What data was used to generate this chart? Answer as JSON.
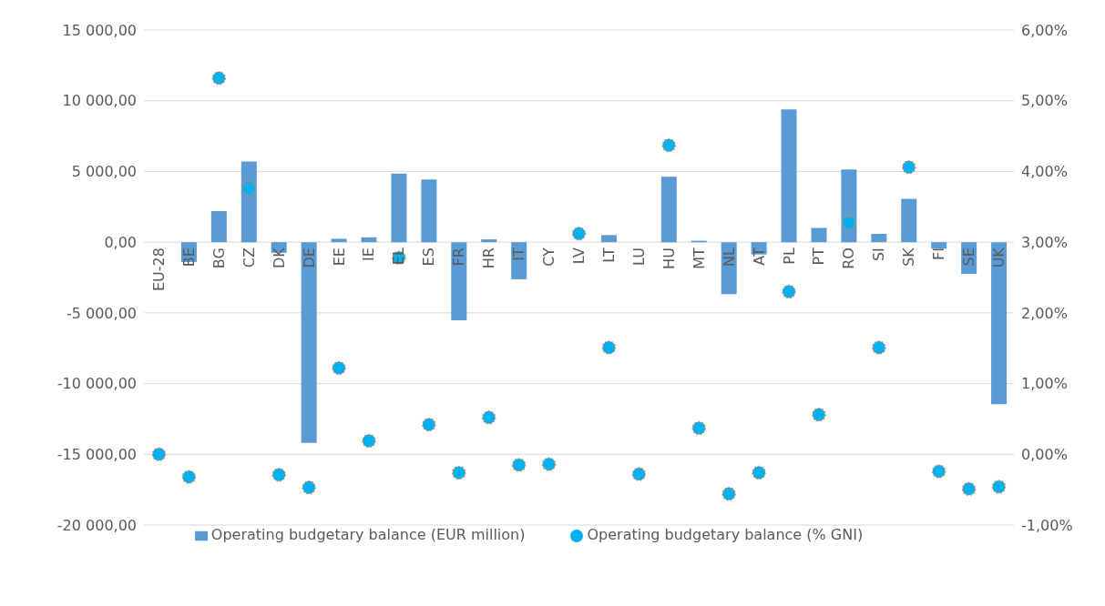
{
  "chart_data": {
    "type": "bar",
    "categories": [
      "EU-28",
      "BE",
      "BG",
      "CZ",
      "DK",
      "DE",
      "EE",
      "IE",
      "EL",
      "ES",
      "FR",
      "HR",
      "IT",
      "CY",
      "LV",
      "LT",
      "LU",
      "HU",
      "MT",
      "NL",
      "AT",
      "PL",
      "PT",
      "RO",
      "SI",
      "SK",
      "FI",
      "SE",
      "UK"
    ],
    "series": [
      {
        "name": "Operating budgetary balance (EUR million)",
        "color": "#5b9bd5",
        "values": [
          0,
          -1400,
          2200,
          5700,
          -750,
          -14200,
          240,
          340,
          4850,
          4440,
          -5530,
          200,
          -2620,
          0,
          null,
          500,
          0,
          4630,
          100,
          -3680,
          -870,
          9380,
          1010,
          5140,
          590,
          3060,
          -460,
          -2240,
          -11460
        ]
      },
      {
        "name": "Operating budgetary balance (% GNI)",
        "type": "scatter",
        "axis": "y2",
        "color": "#00b0f0",
        "marker": "circle",
        "x": [
          "EU-28",
          "BE",
          "BG",
          "CZ",
          "DK",
          "DE",
          "EE",
          "IE",
          "EL",
          "ES",
          "FR",
          "HR",
          "IT",
          "CY",
          "LV",
          "LT",
          "LU",
          "HU",
          "MT",
          "NL",
          "AT",
          "PL",
          "PT",
          "RO",
          "SI",
          "SK",
          "FI",
          "SE",
          "UK"
        ],
        "values": [
          0,
          -0.32,
          5.32,
          3.76,
          -0.29,
          -0.47,
          1.22,
          0.19,
          2.78,
          0.42,
          -0.26,
          0.52,
          -0.15,
          -0.14,
          3.12,
          1.51,
          -0.28,
          4.37,
          0.37,
          -0.56,
          -0.26,
          2.3,
          0.56,
          3.27,
          1.51,
          4.06,
          -0.24,
          -0.49,
          -0.46
        ]
      }
    ],
    "ylim": [
      -20000,
      15000
    ],
    "yticks": [
      {
        "value": -20000,
        "label": "-20 000,00"
      },
      {
        "value": -15000,
        "label": "-15 000,00"
      },
      {
        "value": -10000,
        "label": "-10 000,00"
      },
      {
        "value": -5000,
        "label": "-5 000,00"
      },
      {
        "value": 0,
        "label": "0,00"
      },
      {
        "value": 5000,
        "label": "5 000,00"
      },
      {
        "value": 10000,
        "label": "10 000,00"
      },
      {
        "value": 15000,
        "label": "15 000,00"
      }
    ],
    "y2lim": [
      -1,
      6
    ],
    "y2ticks": [
      {
        "value": -1,
        "label": "-1,00%"
      },
      {
        "value": 0,
        "label": "0,00%"
      },
      {
        "value": 1,
        "label": "1,00%"
      },
      {
        "value": 2,
        "label": "2,00%"
      },
      {
        "value": 3,
        "label": "3,00%"
      },
      {
        "value": 4,
        "label": "4,00%"
      },
      {
        "value": 5,
        "label": "5,00%"
      },
      {
        "value": 6,
        "label": "6,00%"
      }
    ],
    "grid": "y",
    "legend": "bottom"
  }
}
